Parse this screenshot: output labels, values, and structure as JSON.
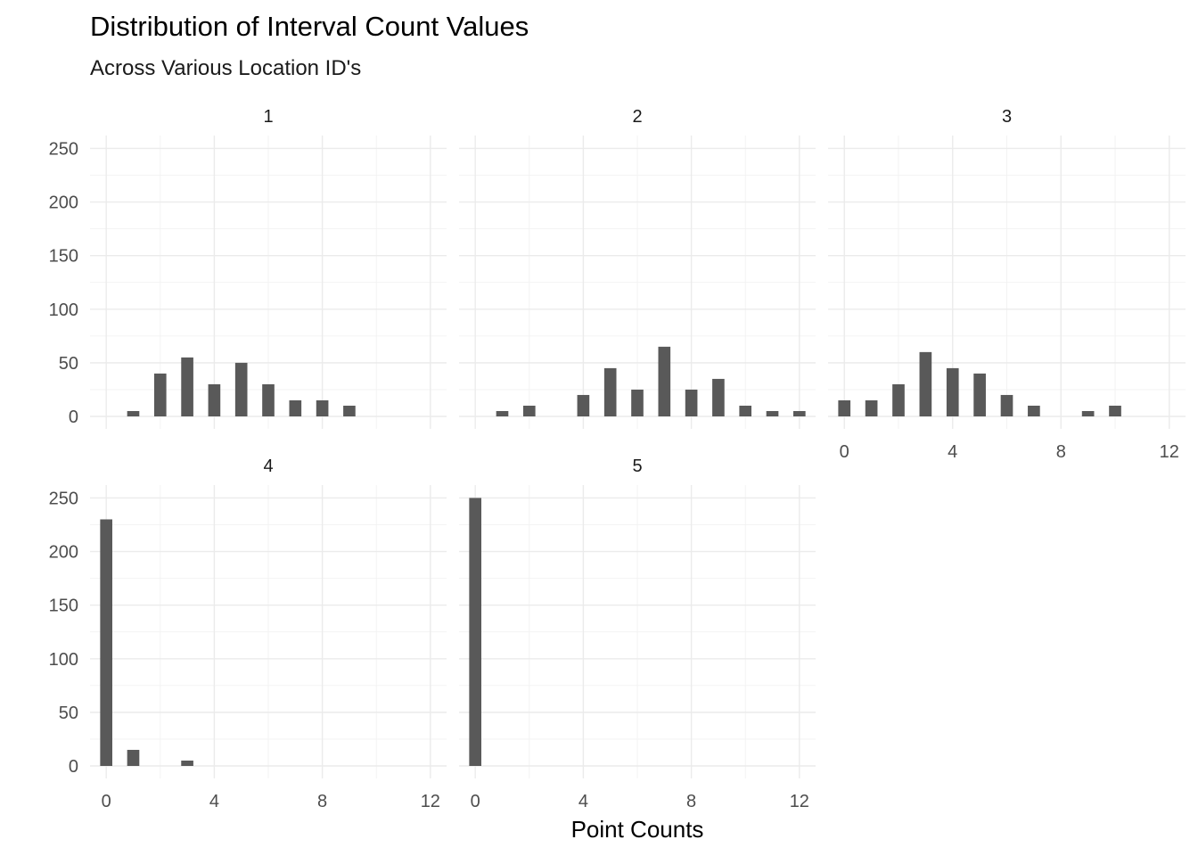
{
  "chart_data": {
    "type": "bar",
    "title": "Distribution of Interval Count Values",
    "subtitle": "Across Various Location ID's",
    "xlabel": "Point Counts",
    "ylabel": "",
    "xlim": [
      -0.6,
      12.6
    ],
    "ylim": [
      0,
      262
    ],
    "x_ticks": [
      0,
      4,
      8,
      12
    ],
    "y_ticks": [
      0,
      50,
      100,
      150,
      200,
      250
    ],
    "grid": true,
    "legend": "none",
    "bar_color": "#595959",
    "panels": [
      {
        "label": "1",
        "x": [
          1,
          2,
          3,
          4,
          5,
          6,
          7,
          8,
          9,
          10
        ],
        "values": [
          5,
          40,
          55,
          30,
          50,
          30,
          15,
          15,
          10,
          0
        ]
      },
      {
        "label": "2",
        "x": [
          1,
          2,
          4,
          5,
          6,
          7,
          8,
          9,
          10,
          11,
          12
        ],
        "values": [
          5,
          10,
          20,
          45,
          25,
          65,
          25,
          35,
          10,
          5,
          5
        ]
      },
      {
        "label": "3",
        "x": [
          0,
          1,
          2,
          3,
          4,
          5,
          6,
          7,
          9,
          10
        ],
        "values": [
          15,
          15,
          30,
          60,
          45,
          40,
          20,
          10,
          5,
          10
        ]
      },
      {
        "label": "4",
        "x": [
          0,
          1,
          3
        ],
        "values": [
          230,
          15,
          5
        ]
      },
      {
        "label": "5",
        "x": [
          0
        ],
        "values": [
          250
        ]
      }
    ]
  }
}
